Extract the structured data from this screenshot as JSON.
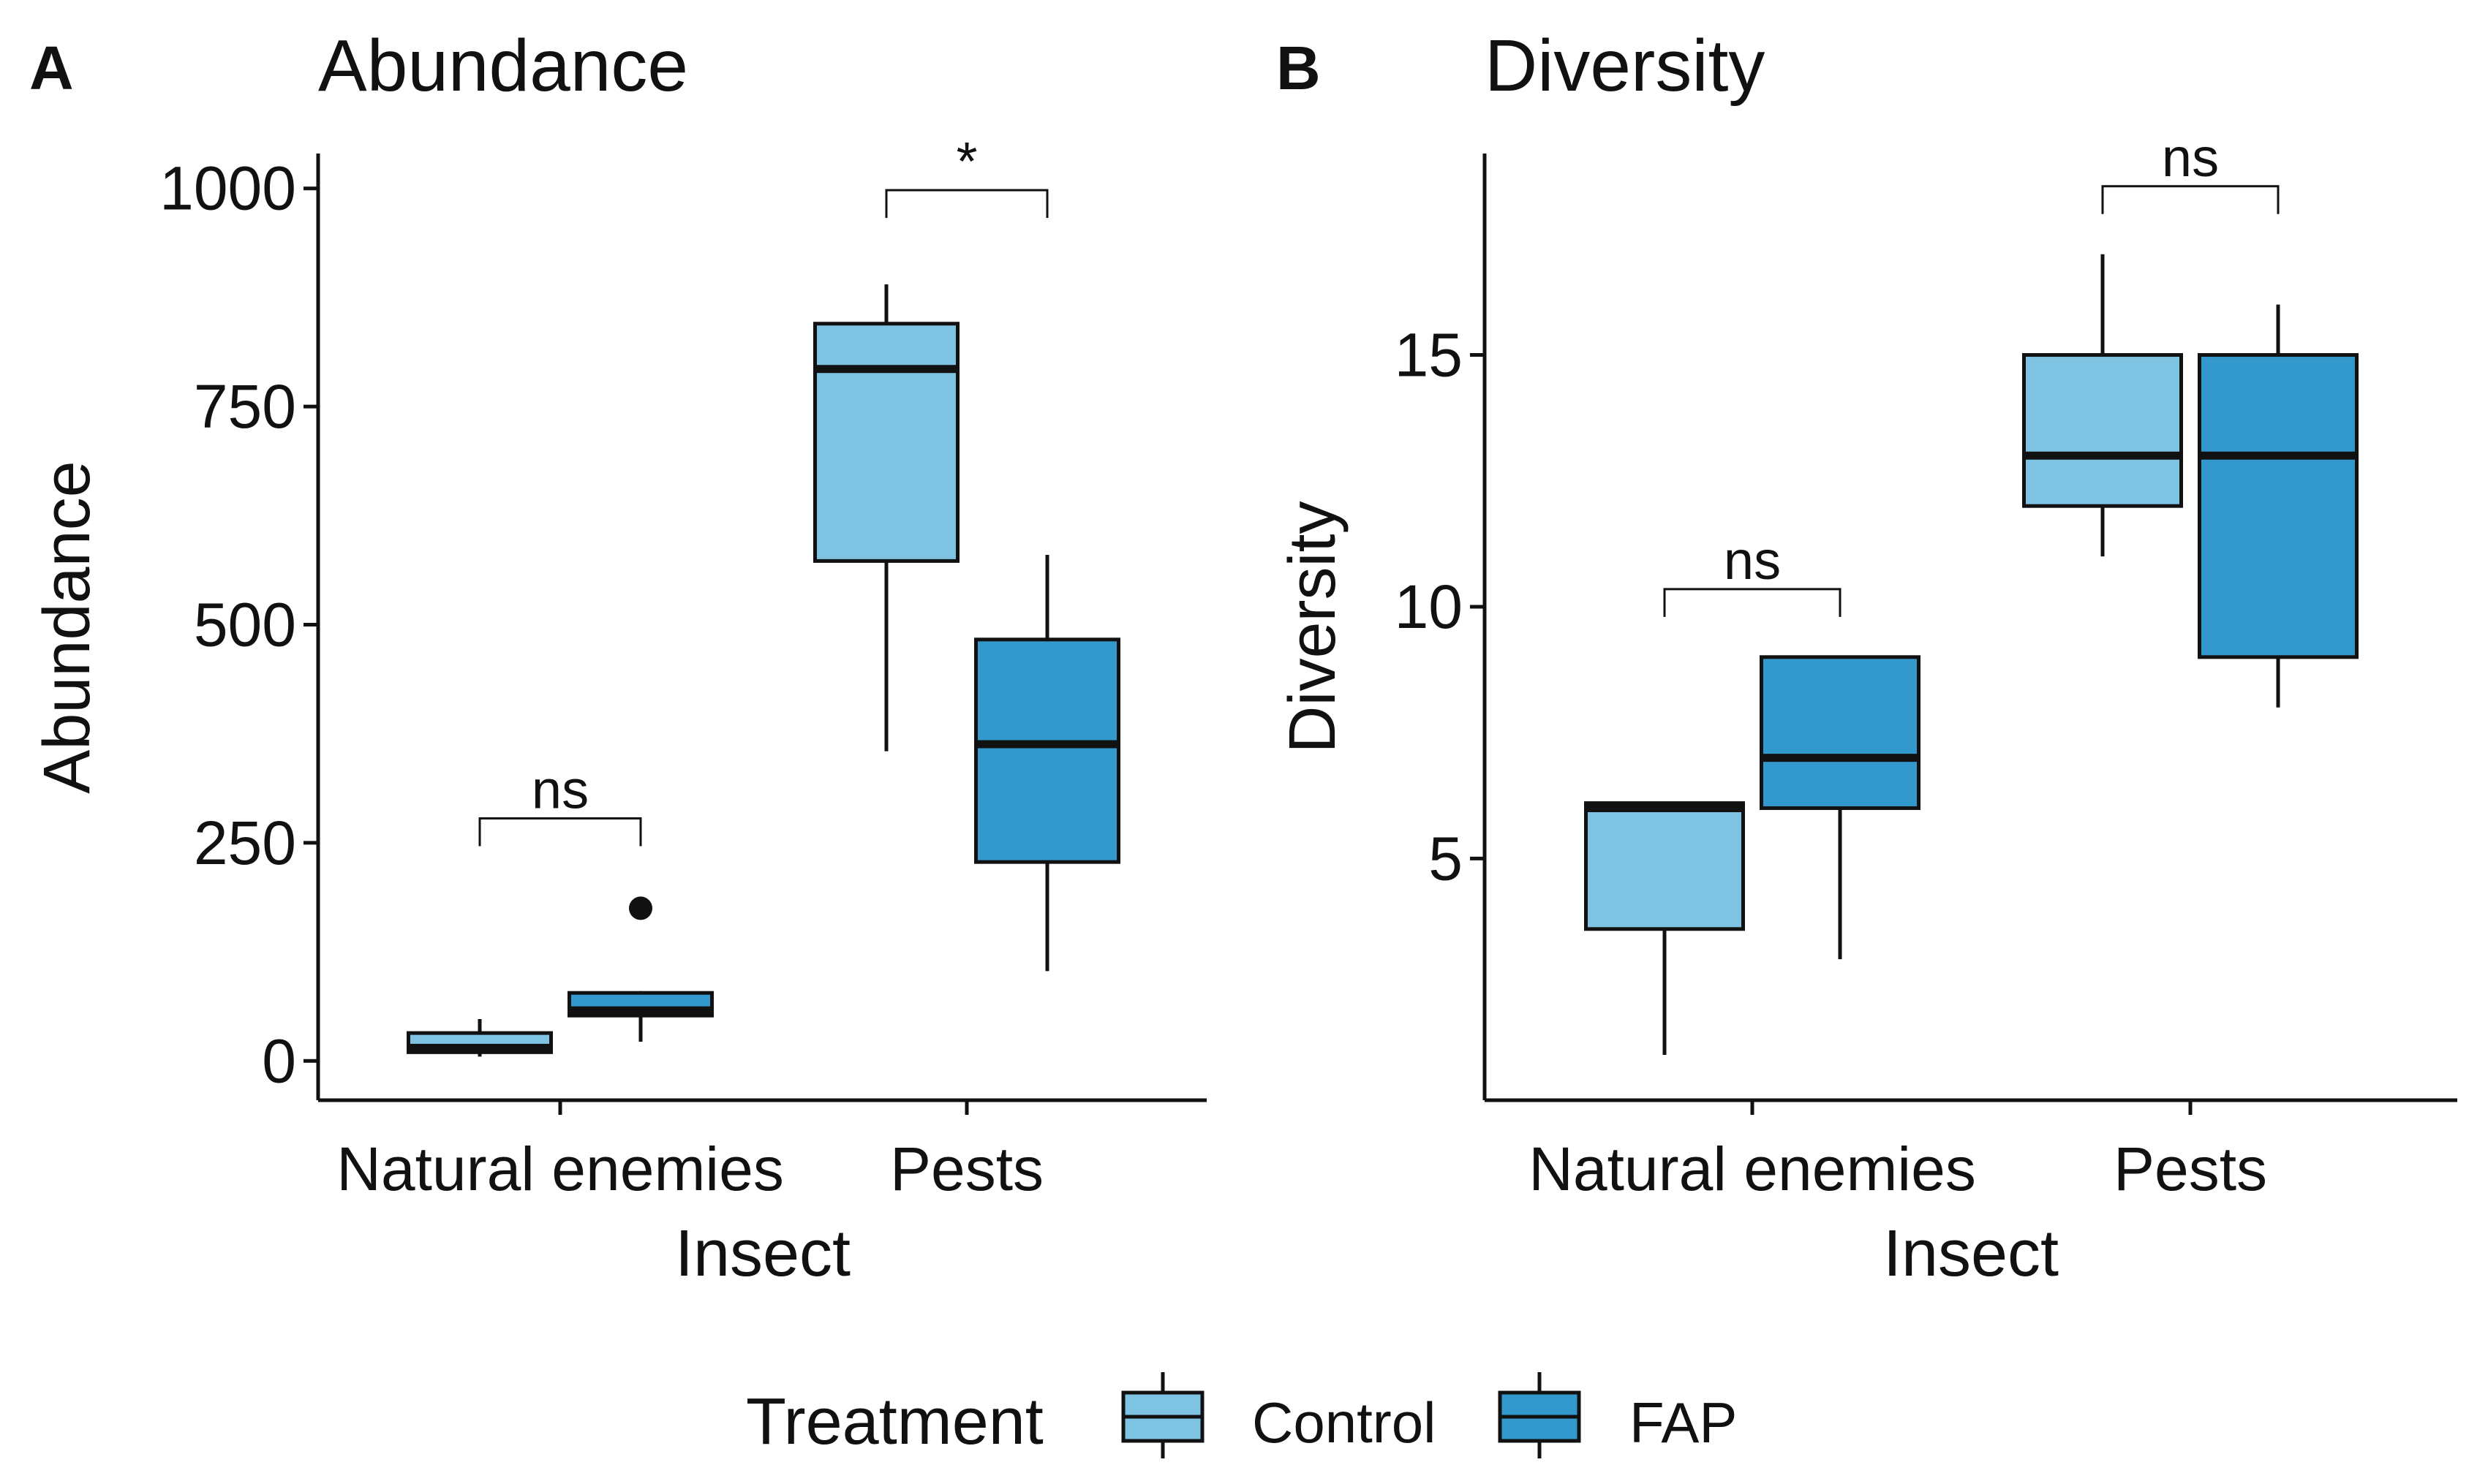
{
  "chart_data": [
    {
      "type": "box",
      "panel_label": "A",
      "title": "Abundance",
      "xlabel": "Insect",
      "ylabel": "Abundance",
      "ylim": [
        -45,
        1040
      ],
      "yticks": [
        0,
        250,
        500,
        750,
        1000
      ],
      "categories": [
        "Natural enemies",
        "Pests"
      ],
      "series": [
        {
          "name": "Control",
          "boxes": [
            {
              "category": "Natural enemies",
              "min": 5,
              "q1": 10,
              "median": 15,
              "q3": 32,
              "max": 48,
              "outliers": []
            },
            {
              "category": "Pests",
              "min": 355,
              "q1": 573,
              "median": 793,
              "q3": 845,
              "max": 890,
              "outliers": []
            }
          ]
        },
        {
          "name": "FAP",
          "boxes": [
            {
              "category": "Natural enemies",
              "min": 22,
              "q1": 52,
              "median": 58,
              "q3": 78,
              "max": 80,
              "outliers": [
                175
              ]
            },
            {
              "category": "Pests",
              "min": 103,
              "q1": 228,
              "median": 363,
              "q3": 483,
              "max": 580,
              "outliers": []
            }
          ]
        }
      ],
      "significance": [
        {
          "category": "Natural enemies",
          "label": "ns",
          "y": 278
        },
        {
          "category": "Pests",
          "label": "*",
          "y": 998
        }
      ]
    },
    {
      "type": "box",
      "panel_label": "B",
      "title": "Diversity",
      "xlabel": "Insect",
      "ylabel": "Diversity",
      "ylim": [
        0.2,
        19
      ],
      "yticks": [
        5,
        10,
        15
      ],
      "categories": [
        "Natural enemies",
        "Pests"
      ],
      "series": [
        {
          "name": "Control",
          "boxes": [
            {
              "category": "Natural enemies",
              "min": 1.1,
              "q1": 3.6,
              "median": 6.0,
              "q3": 6.1,
              "max": 6.1,
              "outliers": []
            },
            {
              "category": "Pests",
              "min": 11.0,
              "q1": 12.0,
              "median": 13.0,
              "q3": 15.0,
              "max": 17.0,
              "outliers": []
            }
          ]
        },
        {
          "name": "FAP",
          "boxes": [
            {
              "category": "Natural enemies",
              "min": 3.0,
              "q1": 6.0,
              "median": 7.0,
              "q3": 9.0,
              "max": 9.0,
              "outliers": []
            },
            {
              "category": "Pests",
              "min": 8.0,
              "q1": 9.0,
              "median": 13.0,
              "q3": 15.0,
              "max": 16.0,
              "outliers": []
            }
          ]
        }
      ],
      "significance": [
        {
          "category": "Natural enemies",
          "label": "ns",
          "y": 10.35
        },
        {
          "category": "Pests",
          "label": "ns",
          "y": 18.35
        }
      ]
    }
  ],
  "legend": {
    "title": "Treatment",
    "items": [
      {
        "label": "Control",
        "color": "#7EC4E2"
      },
      {
        "label": "FAP",
        "color": "#3399CC"
      }
    ]
  }
}
